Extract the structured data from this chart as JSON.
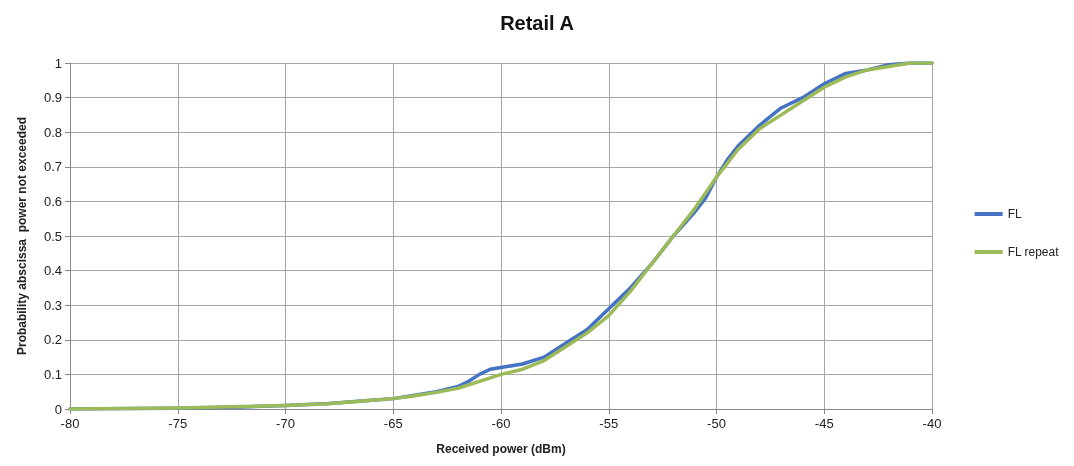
{
  "chart_data": {
    "type": "line",
    "title": "Retail A",
    "xlabel": "Received power (dBm)",
    "ylabel": "Probability abscissa  power not exceeded",
    "xlim": [
      -80,
      -40
    ],
    "xticks": [
      -80,
      -75,
      -70,
      -65,
      -60,
      -55,
      -50,
      -45,
      -40
    ],
    "ylim": [
      0,
      1
    ],
    "yticks": [
      0,
      0.1,
      0.2,
      0.3,
      0.4,
      0.5,
      0.6,
      0.7,
      0.8,
      0.9,
      1
    ],
    "grid": true,
    "legend": "right",
    "marker": "none",
    "line_style": "solid",
    "series": [
      {
        "name": "FL",
        "color": "#4472c4",
        "x": [
          -80,
          -75,
          -72,
          -70,
          -68,
          -66,
          -65,
          -64,
          -63,
          -62,
          -61.5,
          -61,
          -60.5,
          -60,
          -59,
          -58,
          -57,
          -56,
          -55,
          -54,
          -53,
          -52.5,
          -52,
          -51,
          -50.5,
          -50,
          -49.5,
          -49,
          -48,
          -47,
          -46,
          -45,
          -44,
          -43,
          -42,
          -41,
          -40
        ],
        "values": [
          0,
          0.002,
          0.006,
          0.01,
          0.016,
          0.025,
          0.03,
          0.04,
          0.05,
          0.065,
          0.08,
          0.1,
          0.115,
          0.12,
          0.13,
          0.15,
          0.19,
          0.23,
          0.29,
          0.35,
          0.42,
          0.46,
          0.5,
          0.57,
          0.61,
          0.67,
          0.72,
          0.76,
          0.82,
          0.87,
          0.9,
          0.94,
          0.97,
          0.98,
          0.995,
          1,
          1
        ]
      },
      {
        "name": "FL repeat",
        "color": "#9bbb59",
        "x": [
          -80,
          -75,
          -72,
          -70,
          -68,
          -66,
          -65,
          -64,
          -63,
          -62,
          -61,
          -60,
          -59,
          -58,
          -57,
          -56,
          -55,
          -54,
          -53,
          -52,
          -51,
          -50,
          -49,
          -48,
          -47,
          -46,
          -45,
          -44,
          -43,
          -42,
          -41,
          -40
        ],
        "values": [
          0,
          0.003,
          0.007,
          0.01,
          0.015,
          0.025,
          0.03,
          0.038,
          0.048,
          0.06,
          0.08,
          0.1,
          0.115,
          0.14,
          0.18,
          0.22,
          0.27,
          0.34,
          0.42,
          0.5,
          0.58,
          0.67,
          0.75,
          0.81,
          0.85,
          0.89,
          0.93,
          0.96,
          0.98,
          0.99,
          1,
          1
        ]
      }
    ]
  }
}
